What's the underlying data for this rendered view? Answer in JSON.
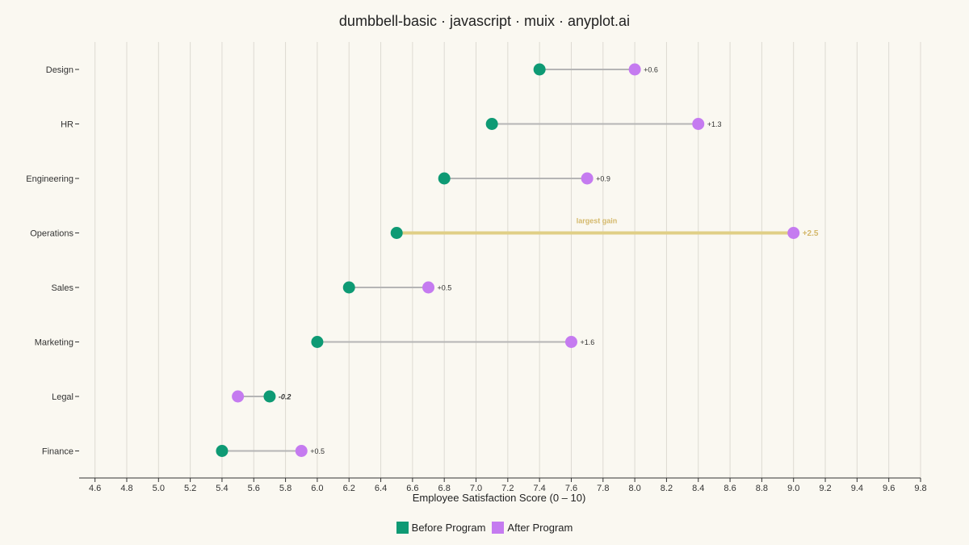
{
  "chart_data": {
    "type": "dumbbell",
    "title": "dumbbell-basic · javascript · muix · anyplot.ai",
    "xlabel": "Employee Satisfaction Score (0 – 10)",
    "ylabel": "",
    "xlim": [
      4.5,
      9.8
    ],
    "xticks": [
      4.6,
      4.8,
      5.0,
      5.2,
      5.4,
      5.6,
      5.8,
      6.0,
      6.2,
      6.4,
      6.6,
      6.8,
      7.0,
      7.2,
      7.4,
      7.6,
      7.8,
      8.0,
      8.2,
      8.4,
      8.6,
      8.8,
      9.0,
      9.2,
      9.4,
      9.6,
      9.8
    ],
    "grid": "vertical",
    "legend_position": "bottom-center",
    "colors": {
      "before": "#0E9A74",
      "after": "#C57BF0",
      "connector": "#B5B5B5",
      "highlight": "#E0CF86",
      "highlight_text": "#D4B86A",
      "negative_text": "#333333"
    },
    "series": [
      {
        "name": "Before Program",
        "color": "#0E9A74"
      },
      {
        "name": "After Program",
        "color": "#C57BF0"
      }
    ],
    "categories": [
      "Design",
      "HR",
      "Engineering",
      "Operations",
      "Sales",
      "Marketing",
      "Legal",
      "Finance"
    ],
    "rows": [
      {
        "category": "Design",
        "before": 7.4,
        "after": 8.0,
        "delta_label": "+0.6"
      },
      {
        "category": "HR",
        "before": 7.1,
        "after": 8.4,
        "delta_label": "+1.3"
      },
      {
        "category": "Engineering",
        "before": 6.8,
        "after": 7.7,
        "delta_label": "+0.9"
      },
      {
        "category": "Operations",
        "before": 6.5,
        "after": 9.0,
        "delta_label": "+2.5",
        "highlight": true,
        "annotation": "largest gain"
      },
      {
        "category": "Sales",
        "before": 6.2,
        "after": 6.7,
        "delta_label": "+0.5"
      },
      {
        "category": "Marketing",
        "before": 6.0,
        "after": 7.6,
        "delta_label": "+1.6"
      },
      {
        "category": "Legal",
        "before": 5.7,
        "after": 5.5,
        "delta_label": "-0.2",
        "negative": true
      },
      {
        "category": "Finance",
        "before": 5.4,
        "after": 5.9,
        "delta_label": "+0.5"
      }
    ]
  }
}
